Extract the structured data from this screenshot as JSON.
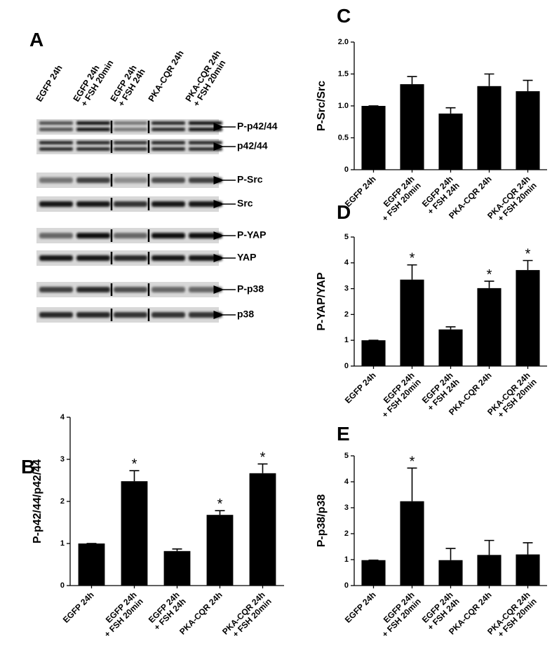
{
  "panel_a": {
    "panel_label": "A",
    "lanes": [
      [
        "EGFP 24h"
      ],
      [
        "EGFP 24h",
        "+ FSH 20min"
      ],
      [
        "EGFP 24h",
        "+ FSH 24h"
      ],
      [
        "PKA-CQR 24h"
      ],
      [
        "PKA-CQR 24h",
        "+ FSH 20min"
      ]
    ],
    "bands": [
      "P-p42/44",
      "p42/44",
      "P-Src",
      "Src",
      "P-YAP",
      "YAP",
      "P-p38",
      "p38"
    ]
  },
  "chart_data": [
    {
      "type": "bar",
      "panel_label": "B",
      "y_label": "P-p42/44/p42/44",
      "categories": [
        [
          "EGFP 24h"
        ],
        [
          "EGFP 24h",
          "+ FSH 20min"
        ],
        [
          "EGFP 24h",
          "+ FSH 24h"
        ],
        [
          "PKA-CQR 24h"
        ],
        [
          "PKA-CQR 24h",
          "+ FSH 20min"
        ]
      ],
      "values": [
        1,
        2.48,
        0.82,
        1.68,
        2.67
      ],
      "errors": [
        0,
        0.25,
        0.05,
        0.1,
        0.22
      ],
      "significance": [
        null,
        "*",
        null,
        "*",
        "*"
      ],
      "color": "#000000",
      "ylim": [
        0,
        4
      ],
      "yticks": [
        0,
        1,
        2,
        3,
        4
      ]
    },
    {
      "type": "bar",
      "panel_label": "C",
      "y_label": "P-Src/Src",
      "categories": [
        [
          "EGFP 24h"
        ],
        [
          "EGFP 24h",
          "+ FSH 20min"
        ],
        [
          "EGFP 24h",
          "+ FSH 24h"
        ],
        [
          "PKA-CQR 24h"
        ],
        [
          "PKA-CQR 24h",
          "+ FSH 20min"
        ]
      ],
      "values": [
        1,
        1.34,
        0.88,
        1.31,
        1.23
      ],
      "errors": [
        0,
        0.12,
        0.09,
        0.19,
        0.17
      ],
      "color": "#000000",
      "ylim": [
        0,
        2
      ],
      "yticks": [
        0,
        0.5,
        {
          "value": 1,
          "label": "1.0"
        },
        1.5,
        {
          "value": 2,
          "label": "2.0"
        }
      ]
    },
    {
      "type": "bar",
      "panel_label": "D",
      "y_label": "P-YAP/YAP",
      "categories": [
        [
          "EGFP 24h"
        ],
        [
          "EGFP 24h",
          "+ FSH 20min"
        ],
        [
          "EGFP 24h",
          "+ FSH 24h"
        ],
        [
          "PKA-CQR 24h"
        ],
        [
          "PKA-CQR 24h",
          "+ FSH 20min"
        ]
      ],
      "values": [
        1,
        3.35,
        1.42,
        3.02,
        3.72
      ],
      "errors": [
        0,
        0.57,
        0.1,
        0.27,
        0.37
      ],
      "significance": [
        null,
        "*",
        null,
        "*",
        "*"
      ],
      "color": "#000000",
      "ylim": [
        0,
        5
      ],
      "yticks": [
        0,
        1,
        2,
        3,
        4,
        5
      ]
    },
    {
      "type": "bar",
      "panel_label": "E",
      "y_label": "P-p38/p38",
      "categories": [
        [
          "EGFP 24h"
        ],
        [
          "EGFP 24h",
          "+ FSH 20min"
        ],
        [
          "EGFP 24h",
          "+ FSH 24h"
        ],
        [
          "PKA-CQR 24h"
        ],
        [
          "PKA-CQR 24h",
          "+ FSH 20min"
        ]
      ],
      "values": [
        0.98,
        3.25,
        0.98,
        1.18,
        1.2
      ],
      "errors": [
        0,
        1.28,
        0.45,
        0.56,
        0.45
      ],
      "significance": [
        null,
        "*",
        null,
        null,
        null
      ],
      "color": "#000000",
      "ylim": [
        0,
        5
      ],
      "yticks": [
        0,
        1,
        2,
        3,
        4,
        5
      ]
    }
  ]
}
